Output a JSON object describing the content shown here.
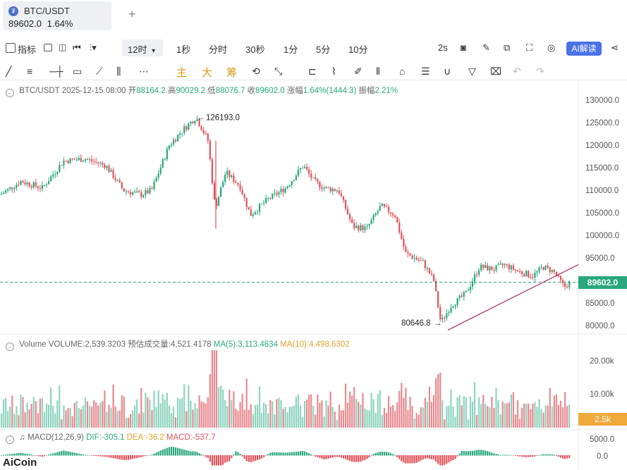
{
  "tab": {
    "symbol": "BTC/USDT",
    "price": "89602.0",
    "change": "1.64%",
    "add": "+"
  },
  "toolbar": {
    "indicators": "指标",
    "interval_selected": "12时",
    "intervals": [
      "1秒",
      "分时",
      "30秒",
      "1分",
      "5分",
      "10分"
    ],
    "refresh": "2s",
    "ai_button": "AI解读"
  },
  "drawbar": {
    "main": "主",
    "big": "大",
    "chip": "筹"
  },
  "info": {
    "symbol_date": "BTC/USDT 2025-12-15 08:00",
    "open_label": "开",
    "open": "88164.2",
    "high_label": "高",
    "high": "90029.2",
    "low_label": "低",
    "low": "88076.7",
    "close_label": "收",
    "close": "89602.0",
    "change_label": "涨幅",
    "change": "1.64%(1444.3)",
    "amp_label": "振幅",
    "amp": "2.21%"
  },
  "annotations": {
    "high": "126193.0",
    "low": "80646.8"
  },
  "price_axis": [
    "130000.0",
    "125000.0",
    "120000.0",
    "115000.0",
    "110000.0",
    "105000.0",
    "100000.0",
    "95000.0",
    "89602.0",
    "85000.0",
    "80000.0"
  ],
  "volume": {
    "label": "Volume",
    "volume": "VOLUME:2,539.3203",
    "est": "预估成交量:4,521.4178",
    "ma5": "MA(5):3,113.4634",
    "ma10": "MA(10):4,498.6302",
    "axis": [
      "20.00k",
      "10.00k",
      "2.5k"
    ]
  },
  "macd": {
    "label": "MACD(12,26,9)",
    "dif": "DIF:-305.1",
    "dea": "DEA:-36.2",
    "macd": "MACD:-537.7",
    "axis": [
      "5000.0",
      "0.0"
    ]
  },
  "watermark": "AiCoin",
  "colors": {
    "up": "#2aa77e",
    "down": "#e0525a",
    "accent": "#4a73e8",
    "ma10": "#e0a32b"
  },
  "chart_data": {
    "type": "candlestick",
    "interval": "12h",
    "close_points": [
      [
        0,
        109000
      ],
      [
        30,
        112000
      ],
      [
        60,
        110500
      ],
      [
        90,
        116500
      ],
      [
        120,
        117000
      ],
      [
        150,
        115500
      ],
      [
        175,
        110000
      ],
      [
        200,
        109000
      ],
      [
        215,
        110000
      ],
      [
        240,
        120000
      ],
      [
        260,
        123500
      ],
      [
        278,
        126193
      ],
      [
        295,
        121000
      ],
      [
        305,
        106000
      ],
      [
        320,
        114000
      ],
      [
        340,
        111000
      ],
      [
        355,
        104500
      ],
      [
        380,
        108000
      ],
      [
        405,
        110500
      ],
      [
        430,
        115500
      ],
      [
        445,
        112000
      ],
      [
        460,
        110500
      ],
      [
        480,
        110000
      ],
      [
        500,
        102000
      ],
      [
        520,
        101500
      ],
      [
        540,
        106500
      ],
      [
        560,
        104500
      ],
      [
        575,
        96000
      ],
      [
        600,
        94000
      ],
      [
        615,
        90000
      ],
      [
        625,
        80646.8
      ],
      [
        640,
        84500
      ],
      [
        660,
        87000
      ],
      [
        680,
        93000
      ],
      [
        700,
        92500
      ],
      [
        715,
        93500
      ],
      [
        735,
        92000
      ],
      [
        755,
        91000
      ],
      [
        770,
        93000
      ],
      [
        785,
        92000
      ],
      [
        800,
        88500
      ],
      [
        808,
        89602
      ]
    ],
    "ylim": [
      78000,
      131000
    ],
    "trendline": [
      [
        635,
        79000
      ],
      [
        820,
        93500
      ]
    ],
    "last_price": 89602.0
  }
}
